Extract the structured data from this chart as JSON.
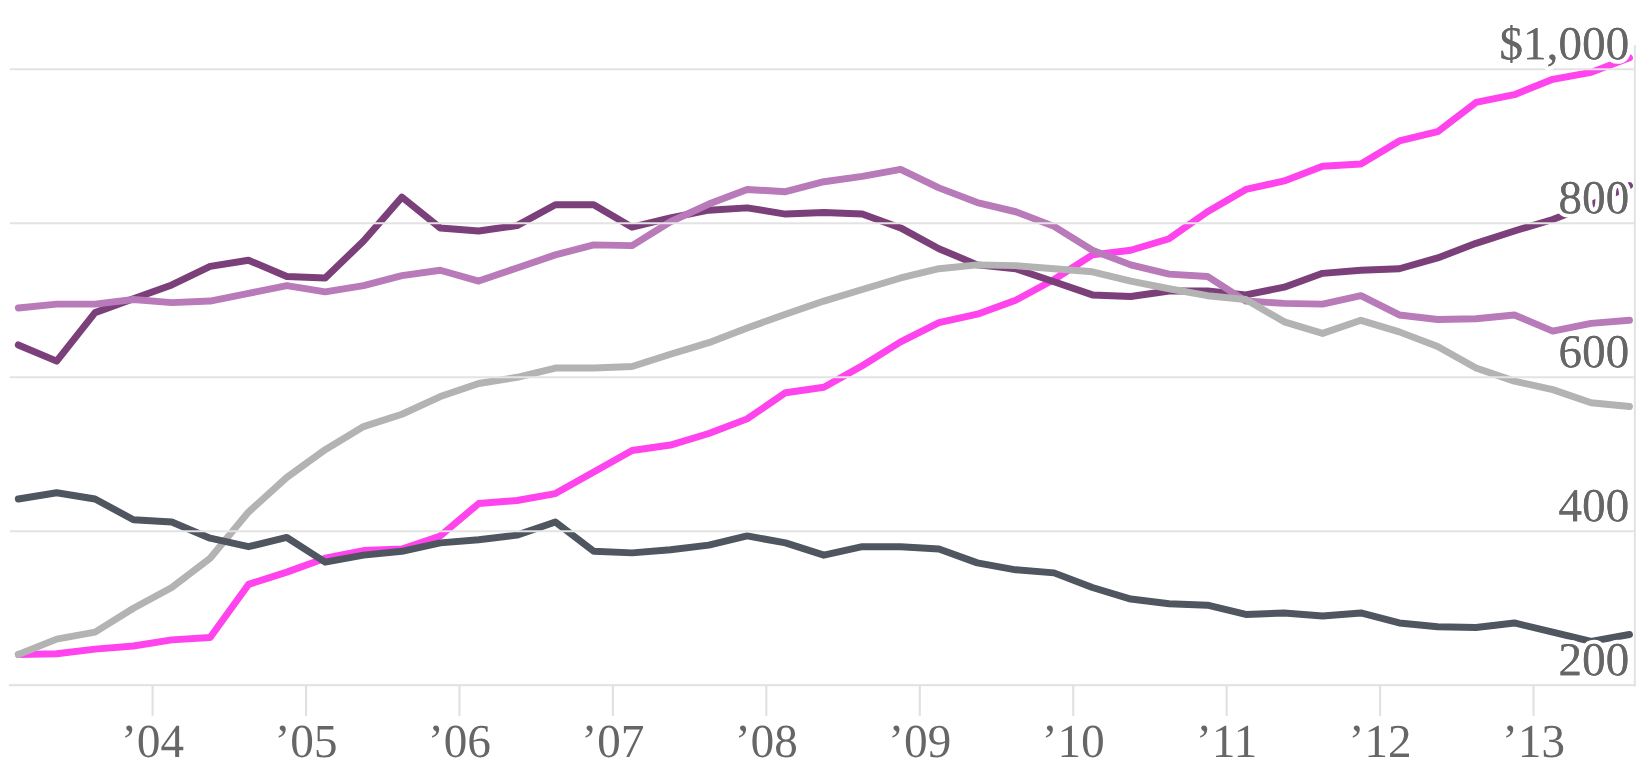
{
  "chart_data": {
    "type": "line",
    "x": [
      2003.125,
      2003.375,
      2003.625,
      2003.875,
      2004.125,
      2004.375,
      2004.625,
      2004.875,
      2005.125,
      2005.375,
      2005.625,
      2005.875,
      2006.125,
      2006.375,
      2006.625,
      2006.875,
      2007.125,
      2007.375,
      2007.625,
      2007.875,
      2008.125,
      2008.375,
      2008.625,
      2008.875,
      2009.125,
      2009.375,
      2009.625,
      2009.875,
      2010.125,
      2010.375,
      2010.625,
      2010.875,
      2011.125,
      2011.375,
      2011.625,
      2011.875,
      2012.125,
      2012.375,
      2012.625,
      2012.875,
      2013.125,
      2013.375,
      2013.625
    ],
    "series": [
      {
        "color": "#ff44ee",
        "values": [
          240,
          241,
          247,
          251,
          259,
          262,
          331,
          347,
          365,
          375,
          377,
          394,
          436,
          440,
          449,
          477,
          505,
          512,
          527,
          546,
          580,
          587,
          615,
          646,
          671,
          682,
          700,
          727,
          759,
          765,
          780,
          815,
          844,
          855,
          874,
          877,
          907,
          919,
          957,
          967,
          987,
          996,
          1015
        ]
      },
      {
        "color": "#7b3f7a",
        "values": [
          642,
          621,
          684,
          702,
          720,
          744,
          752,
          731,
          729,
          777,
          834,
          794,
          790,
          797,
          824,
          824,
          795,
          807,
          817,
          820,
          812,
          814,
          812,
          794,
          767,
          746,
          741,
          724,
          707,
          705,
          712,
          712,
          707,
          717,
          735,
          739,
          741,
          755,
          774,
          790,
          805,
          824,
          849
        ]
      },
      {
        "color": "#b87ab8",
        "values": [
          690,
          695,
          695,
          701,
          697,
          699,
          709,
          719,
          711,
          719,
          732,
          739,
          725,
          742,
          759,
          772,
          771,
          802,
          825,
          844,
          841,
          854,
          861,
          870,
          846,
          827,
          815,
          796,
          765,
          746,
          734,
          731,
          699,
          696,
          695,
          706,
          681,
          675,
          676,
          681,
          660,
          670,
          674
        ]
      },
      {
        "color": "#b3b3b3",
        "values": [
          240,
          260,
          269,
          300,
          327,
          365,
          425,
          470,
          506,
          536,
          552,
          575,
          592,
          600,
          612,
          612,
          614,
          630,
          645,
          664,
          682,
          699,
          714,
          729,
          741,
          746,
          745,
          741,
          737,
          725,
          715,
          706,
          701,
          672,
          657,
          674,
          659,
          640,
          612,
          595,
          584,
          567,
          562
        ]
      },
      {
        "color": "#4f5660",
        "values": [
          442,
          450,
          442,
          415,
          412,
          391,
          380,
          392,
          360,
          369,
          374,
          385,
          389,
          395,
          412,
          374,
          372,
          376,
          382,
          394,
          385,
          369,
          380,
          380,
          377,
          359,
          350,
          346,
          327,
          312,
          306,
          304,
          292,
          294,
          290,
          294,
          281,
          276,
          275,
          281,
          269,
          257,
          266
        ]
      }
    ],
    "xlim": [
      2003.07,
      2013.66
    ],
    "xticks": [
      {
        "value": 2004,
        "label": "’04"
      },
      {
        "value": 2005,
        "label": "’05"
      },
      {
        "value": 2006,
        "label": "’06"
      },
      {
        "value": 2007,
        "label": "’07"
      },
      {
        "value": 2008,
        "label": "’08"
      },
      {
        "value": 2009,
        "label": "’09"
      },
      {
        "value": 2010,
        "label": "’10"
      },
      {
        "value": 2011,
        "label": "’11"
      },
      {
        "value": 2012,
        "label": "’12"
      },
      {
        "value": 2013,
        "label": "’13"
      }
    ],
    "ylim": [
      200,
      1030
    ],
    "yticks": [
      200,
      400,
      600,
      800,
      {
        "value": 1000,
        "label": "$1,000"
      }
    ],
    "grid": "y",
    "legend": false,
    "marker": "none",
    "line_style": "solid"
  }
}
